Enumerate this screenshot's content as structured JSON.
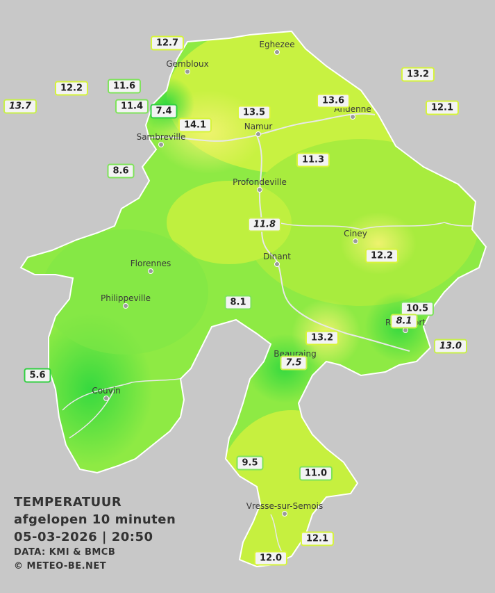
{
  "legend": {
    "title": "TEMPERATUUR",
    "subtitle": "afgelopen 10 minuten",
    "datetime": "05-03-2026  |  20:50",
    "source": "DATA: KMI & BMCB",
    "copyright": "© METEO-BE.NET"
  },
  "colors": {
    "background": "#c8c8c8",
    "region_base": "#8eea44",
    "warm": "#e6f56a",
    "cool": "#4ddf43",
    "river": "#e8e8e8"
  },
  "cities": [
    {
      "id": "eghezee",
      "name": "Eghezee"
    },
    {
      "id": "gembloux",
      "name": "Gembloux"
    },
    {
      "id": "andenne",
      "name": "Andenne"
    },
    {
      "id": "namur",
      "name": "Namur"
    },
    {
      "id": "sambreville",
      "name": "Sambreville"
    },
    {
      "id": "profondeville",
      "name": "Profondeville"
    },
    {
      "id": "ciney",
      "name": "Ciney"
    },
    {
      "id": "dinant",
      "name": "Dinant"
    },
    {
      "id": "florennes",
      "name": "Florennes"
    },
    {
      "id": "philippeville",
      "name": "Philippeville"
    },
    {
      "id": "rochefort",
      "name": "Rochefort"
    },
    {
      "id": "beauraing",
      "name": "Beauraing"
    },
    {
      "id": "couvin",
      "name": "Couvin"
    },
    {
      "id": "vresse",
      "name": "Vresse-sur-Semois"
    }
  ],
  "stations": [
    {
      "id": "s1",
      "value": "12.7",
      "style": "y"
    },
    {
      "id": "s2",
      "value": "12.2",
      "style": "y"
    },
    {
      "id": "s3",
      "value": "13.7",
      "style": "it"
    },
    {
      "id": "s4",
      "value": "11.6",
      "style": ""
    },
    {
      "id": "s5",
      "value": "11.4",
      "style": ""
    },
    {
      "id": "s6",
      "value": "7.4",
      "style": "dk"
    },
    {
      "id": "s7",
      "value": "14.1",
      "style": "y"
    },
    {
      "id": "s8",
      "value": "13.5",
      "style": "y"
    },
    {
      "id": "s9",
      "value": "13.6",
      "style": "y"
    },
    {
      "id": "s10",
      "value": "13.2",
      "style": "y"
    },
    {
      "id": "s11",
      "value": "12.1",
      "style": "y"
    },
    {
      "id": "s12",
      "value": "8.6",
      "style": ""
    },
    {
      "id": "s13",
      "value": "11.3",
      "style": "y"
    },
    {
      "id": "s14",
      "value": "11.8",
      "style": "it"
    },
    {
      "id": "s15",
      "value": "12.2",
      "style": "y"
    },
    {
      "id": "s16",
      "value": "8.1",
      "style": ""
    },
    {
      "id": "s17",
      "value": "10.5",
      "style": ""
    },
    {
      "id": "s18",
      "value": "8.1",
      "style": "it"
    },
    {
      "id": "s19",
      "value": "13.2",
      "style": "y"
    },
    {
      "id": "s20",
      "value": "13.0",
      "style": "it"
    },
    {
      "id": "s21",
      "value": "7.5",
      "style": "it"
    },
    {
      "id": "s22",
      "value": "5.6",
      "style": "dk"
    },
    {
      "id": "s23",
      "value": "9.5",
      "style": ""
    },
    {
      "id": "s24",
      "value": "11.0",
      "style": ""
    },
    {
      "id": "s25",
      "value": "12.1",
      "style": "y"
    },
    {
      "id": "s26",
      "value": "12.0",
      "style": "y"
    }
  ]
}
